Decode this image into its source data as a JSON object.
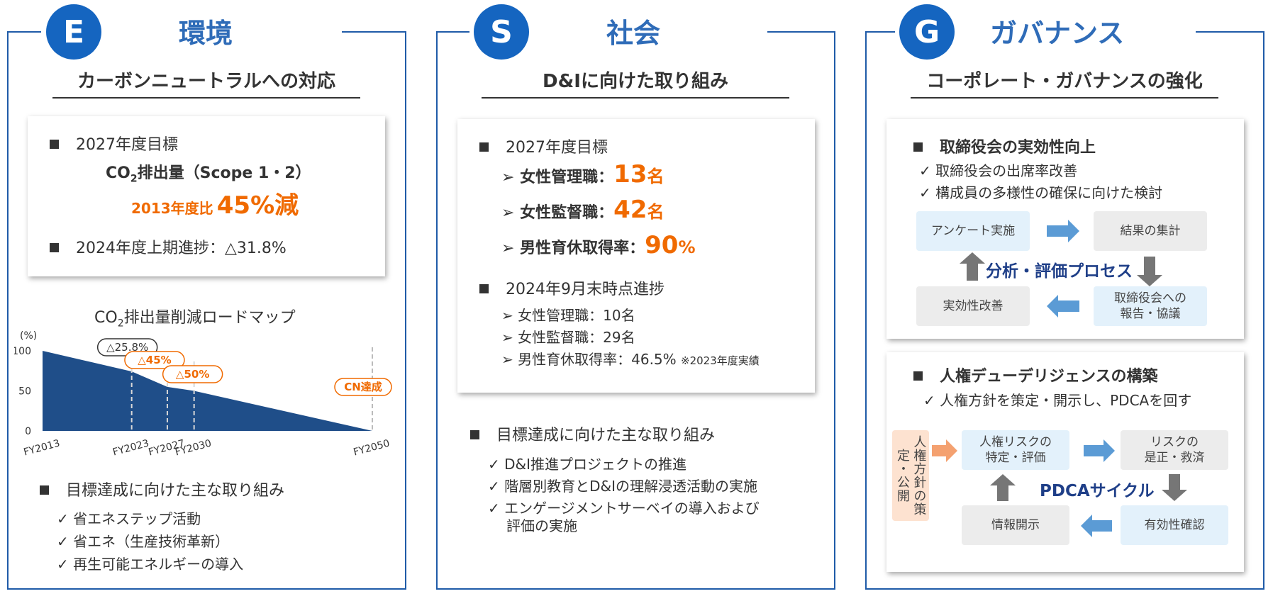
{
  "panel_e": {
    "letter": "E",
    "title": "環境",
    "subtitle": "カーボンニュートラルへの対応",
    "target_heading": "2027年度目標",
    "co2_prefix": "CO",
    "co2_sub": "2",
    "co2_suffix": "排出量（Scope 1・2）",
    "ratio_label": "2013年度比",
    "ratio_value": "45%減",
    "progress": "2024年度上期進捗：△31.8%",
    "roadmap_prefix": "CO",
    "roadmap_sub": "2",
    "roadmap_suffix": "排出量削減ロードマップ",
    "initiatives_heading": "目標達成に向けた主な取り組み",
    "initiatives": [
      "省エネステップ活動",
      "省エネ（生産技術革新）",
      "再生可能エネルギーの導入"
    ]
  },
  "chart_data": {
    "type": "area",
    "ylabel": "(%)",
    "yticks": [
      "100",
      "50",
      "0"
    ],
    "ylim": [
      0,
      100
    ],
    "x": [
      2013,
      2023,
      2027,
      2030,
      2050
    ],
    "xticks": [
      "FY2013",
      "FY2023",
      "FY2027",
      "FY2030",
      "FY2050"
    ],
    "values": [
      100,
      74.2,
      55,
      50,
      0
    ],
    "annotations": [
      {
        "label": "△25.8%",
        "x": 2023,
        "style": "outline-dark"
      },
      {
        "label": "△45%",
        "x": 2027,
        "style": "outline-orange"
      },
      {
        "label": "△50%",
        "x": 2030,
        "style": "outline-orange"
      },
      {
        "label": "CN達成",
        "x": 2050,
        "style": "outline-orange"
      }
    ],
    "colors": {
      "area": "#1f4e89",
      "accent": "#f06a00"
    }
  },
  "panel_s": {
    "letter": "S",
    "title": "社会",
    "subtitle": "D&Iに向けた取り組み",
    "target_heading": "2027年度目標",
    "targets": [
      {
        "label": "女性管理職：",
        "value": "13",
        "unit": "名"
      },
      {
        "label": "女性監督職：",
        "value": "42",
        "unit": "名"
      },
      {
        "label": "男性育休取得率：",
        "value": "90",
        "unit": "%"
      }
    ],
    "progress_heading": "2024年9月末時点進捗",
    "progress": [
      {
        "text": "女性管理職：10名",
        "note": ""
      },
      {
        "text": "女性監督職：29名",
        "note": ""
      },
      {
        "text": "男性育休取得率：46.5%",
        "note": "※2023年度実績"
      }
    ],
    "initiatives_heading": "目標達成に向けた主な取り組み",
    "initiatives": [
      "D&I推進プロジェクトの推進",
      "階層別教育とD&Iの理解浸透活動の実施",
      "エンゲージメントサーベイの導入および",
      "評価の実施"
    ]
  },
  "panel_g": {
    "letter": "G",
    "title": "ガバナンス",
    "subtitle": "コーポレート・ガバナンスの強化",
    "board": {
      "heading": "取締役会の実効性向上",
      "checks": [
        "取締役会の出席率改善",
        "構成員の多様性の確保に向けた検討"
      ],
      "process_title": "分析・評価プロセス",
      "steps": [
        "アンケート実施",
        "結果の集計",
        "取締役会への",
        "報告・協議",
        "実効性改善"
      ]
    },
    "hr": {
      "heading": "人権デューデリジェンスの構築",
      "checks": [
        "人権方針を策定・開示し、PDCAを回す"
      ],
      "side_label": "人権方針の策定・公開",
      "cycle_title": "PDCAサイクル",
      "steps": [
        "人権リスクの",
        "特定・評価",
        "リスクの",
        "是正・救済",
        "有効性確認",
        "情報開示"
      ]
    }
  }
}
